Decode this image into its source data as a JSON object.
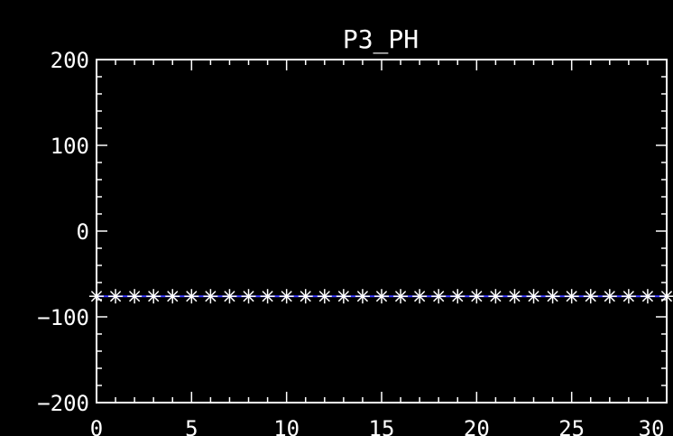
{
  "chart_data": {
    "type": "line",
    "title": "P3_PH",
    "xlabel": "",
    "ylabel": "",
    "xlim": [
      0,
      30
    ],
    "ylim": [
      -200,
      200
    ],
    "x_ticks": [
      0,
      5,
      10,
      15,
      20,
      25,
      30
    ],
    "y_ticks": [
      -200,
      -100,
      0,
      100,
      200
    ],
    "x_tick_labels": [
      "0",
      "5",
      "10",
      "15",
      "20",
      "25",
      "30"
    ],
    "y_tick_labels": [
      "−200",
      "−100",
      "0",
      "100",
      "200"
    ],
    "grid": false,
    "legend": "none",
    "colors": {
      "background": "#000000",
      "axes": "#ffffff",
      "line": "#3a3aff",
      "marker": "#ffffff"
    },
    "series": [
      {
        "marker": "asterisk",
        "x": [
          0,
          1,
          2,
          3,
          4,
          5,
          6,
          7,
          8,
          9,
          10,
          11,
          12,
          13,
          14,
          15,
          16,
          17,
          18,
          19,
          20,
          21,
          22,
          23,
          24,
          25,
          26,
          27,
          28,
          29,
          30
        ],
        "y": [
          -76,
          -76,
          -76,
          -76,
          -76,
          -76,
          -76,
          -76,
          -76,
          -76,
          -76,
          -76,
          -76,
          -76,
          -76,
          -76,
          -76,
          -76,
          -76,
          -76,
          -76,
          -76,
          -76,
          -76,
          -76,
          -76,
          -76,
          -76,
          -76,
          -76,
          -76
        ]
      }
    ]
  }
}
